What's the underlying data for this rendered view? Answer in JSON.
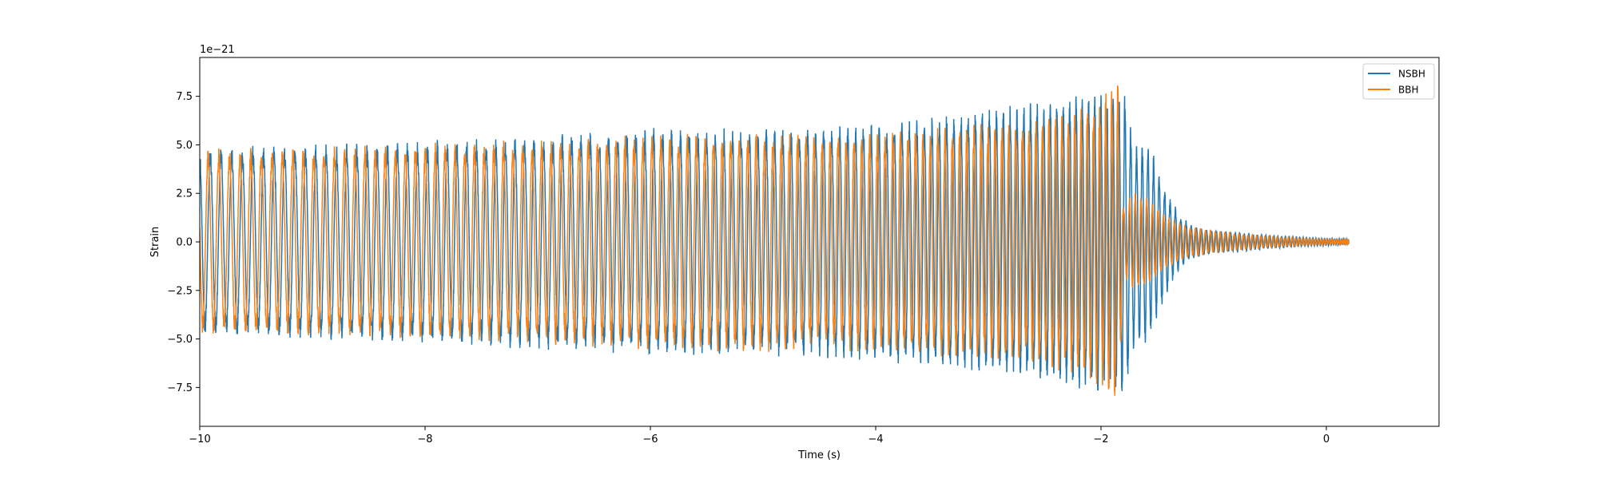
{
  "chart_data": {
    "type": "line",
    "title": "",
    "xlabel": "Time (s)",
    "ylabel": "Strain",
    "y_offset_label": "1e−21",
    "xlim": [
      -10,
      1
    ],
    "ylim": [
      -9.5,
      9.5
    ],
    "xticks": [
      -10,
      -8,
      -6,
      -4,
      -2,
      0
    ],
    "xtick_labels": [
      "−10",
      "−8",
      "−6",
      "−4",
      "−2",
      "0"
    ],
    "yticks": [
      -7.5,
      -5.0,
      -2.5,
      0.0,
      2.5,
      5.0,
      7.5
    ],
    "ytick_labels": [
      "−7.5",
      "−5.0",
      "−2.5",
      "0.0",
      "2.5",
      "5.0",
      "7.5"
    ],
    "grid": false,
    "legend_position": "top-right",
    "series": [
      {
        "name": "NSBH",
        "color": "#1f77b4",
        "envelope": {
          "x": [
            -10,
            -9.5,
            -9,
            -8.5,
            -8,
            -7.5,
            -7,
            -6.5,
            -6,
            -5.5,
            -5,
            -4.5,
            -4,
            -3.5,
            -3,
            -2.5,
            -2.2,
            -2,
            -1.9,
            -1.8,
            -1.7,
            -1.6,
            -1.5,
            -1.4,
            -1.3,
            -1.2,
            -1.1,
            -1.0,
            -0.8,
            -0.5,
            -0.2,
            0,
            0.2
          ],
          "amplitude": [
            4.9,
            5.0,
            5.0,
            5.2,
            5.3,
            5.4,
            5.6,
            5.7,
            5.9,
            5.9,
            5.9,
            6.0,
            6.2,
            6.5,
            7.0,
            7.3,
            7.6,
            7.8,
            7.6,
            8.2,
            5.3,
            5.5,
            4.0,
            2.5,
            1.4,
            0.9,
            0.7,
            0.6,
            0.5,
            0.35,
            0.25,
            0.2,
            0.15
          ]
        }
      },
      {
        "name": "BBH",
        "color": "#ff7f0e",
        "envelope": {
          "x": [
            -10,
            -9.5,
            -9,
            -8.5,
            -8,
            -7.5,
            -7,
            -6.5,
            -6,
            -5.5,
            -5,
            -4.5,
            -4,
            -3.5,
            -3,
            -2.5,
            -2.2,
            -2,
            -1.9,
            -1.85,
            -1.8,
            -1.75,
            -1.7,
            -1.6,
            -1.5,
            -1.4,
            -1.3,
            -1.2,
            -1.1,
            -1.0,
            -0.8,
            -0.5,
            -0.2,
            0,
            0.2
          ],
          "amplitude": [
            4.8,
            4.9,
            4.9,
            5.0,
            5.1,
            5.2,
            5.3,
            5.4,
            5.6,
            5.7,
            5.7,
            5.6,
            5.7,
            5.9,
            6.1,
            6.5,
            7.0,
            7.5,
            8.6,
            8.5,
            1.8,
            2.3,
            2.6,
            2.4,
            1.8,
            1.3,
            1.0,
            0.8,
            0.7,
            0.6,
            0.45,
            0.3,
            0.2,
            0.15,
            0.12
          ]
        }
      }
    ]
  }
}
